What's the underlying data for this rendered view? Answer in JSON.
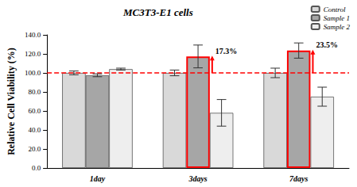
{
  "chart_data": {
    "type": "bar",
    "title": "MC3T3-E1 cells",
    "y_label": "Relative Cell Viability (%)",
    "categories": [
      "1day",
      "3days",
      "7days"
    ],
    "series": [
      {
        "name": "Control",
        "color": "#d9d9d9",
        "values": [
          100,
          100,
          100
        ],
        "errors": [
          2,
          3,
          5
        ]
      },
      {
        "name": "Sample 1",
        "color": "#a6a6a6",
        "values": [
          97.5,
          117.3,
          123.5
        ],
        "errors": [
          1.5,
          12,
          8
        ]
      },
      {
        "name": "Sample 2",
        "color": "#eeeeee",
        "values": [
          104,
          58,
          75
        ],
        "errors": [
          1,
          14,
          10
        ]
      }
    ],
    "ylim": [
      0,
      140
    ],
    "yticks": [
      {
        "value": 0,
        "label": "0.0"
      },
      {
        "value": 20,
        "label": "20.0"
      },
      {
        "value": 40,
        "label": "40.0"
      },
      {
        "value": 60,
        "label": "60.0"
      },
      {
        "value": 80,
        "label": "80.0"
      },
      {
        "value": 100,
        "label": "100.0"
      },
      {
        "value": 120,
        "label": "120.0"
      },
      {
        "value": 140,
        "label": "140.0"
      }
    ],
    "grid": false,
    "legend": "upper right",
    "reference_line": {
      "value": 100,
      "color": "#ff0000"
    },
    "annotations": [
      {
        "text": "17.3%",
        "category": "3days",
        "series": "Sample 1",
        "color": "#ff0000"
      },
      {
        "text": "23.5%",
        "category": "7days",
        "series": "Sample 1",
        "color": "#ff0000"
      }
    ]
  }
}
